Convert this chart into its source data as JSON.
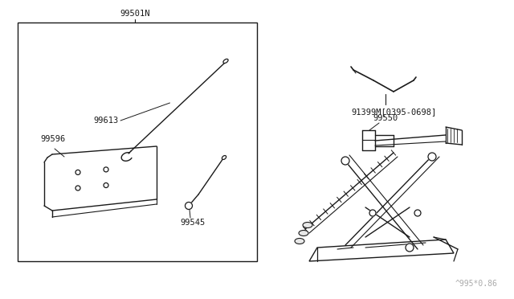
{
  "bg_color": "#ffffff",
  "line_color": "#1a1a1a",
  "title": "99501N",
  "label_99613": "99613",
  "label_99596": "99596",
  "label_99545": "99545",
  "label_91399M": "91399M[0395-0698]",
  "label_99550": "99550",
  "watermark": "^995*0.86",
  "font_size_labels": 7.5,
  "font_size_watermark": 7
}
